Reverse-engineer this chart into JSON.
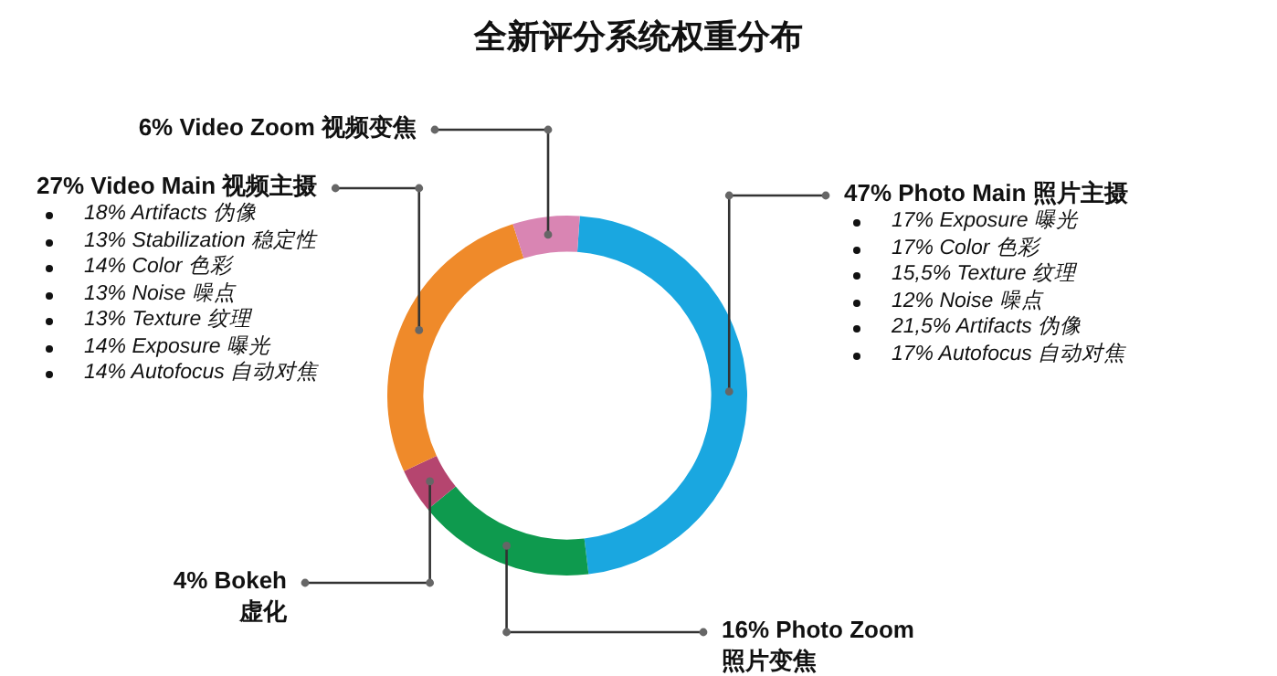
{
  "chart_data": {
    "type": "donut",
    "title": "全新评分系统权重分布",
    "categories": [
      "Photo Main 照片主摄",
      "Photo Zoom 照片变焦",
      "Bokeh 虚化",
      "Video Main 视频主摄",
      "Video Zoom 视频变焦"
    ],
    "values": [
      47,
      16,
      4,
      27,
      6
    ],
    "value_labels": [
      "47%",
      "16%",
      "4%",
      "27%",
      "6%"
    ],
    "colors": [
      "#1aa7e0",
      "#0e9a4e",
      "#b5456f",
      "#ef8a2a",
      "#d985b3"
    ],
    "legend": false,
    "annotations": [
      {
        "text": "17% Exposure 曝光",
        "x": "Photo Main 照片主摄"
      },
      {
        "text": "17% Color 色彩",
        "x": "Photo Main 照片主摄"
      },
      {
        "text": "15,5% Texture 纹理",
        "x": "Photo Main 照片主摄"
      },
      {
        "text": "12% Noise 噪点",
        "x": "Photo Main 照片主摄"
      },
      {
        "text": "21,5% Artifacts 伪像",
        "x": "Photo Main 照片主摄"
      },
      {
        "text": "17% Autofocus 自动对焦",
        "x": "Photo Main 照片主摄"
      },
      {
        "text": "18% Artifacts 伪像",
        "x": "Video Main 视频主摄"
      },
      {
        "text": "13% Stabilization 稳定性",
        "x": "Video Main 视频主摄"
      },
      {
        "text": "14% Color 色彩",
        "x": "Video Main 视频主摄"
      },
      {
        "text": "13% Noise 噪点",
        "x": "Video Main 视频主摄"
      },
      {
        "text": "13% Texture 纹理",
        "x": "Video Main 视频主摄"
      },
      {
        "text": "14% Exposure 曝光",
        "x": "Video Main 视频主摄"
      },
      {
        "text": "14% Autofocus 自动对焦",
        "x": "Video Main 视频主摄"
      }
    ]
  }
}
